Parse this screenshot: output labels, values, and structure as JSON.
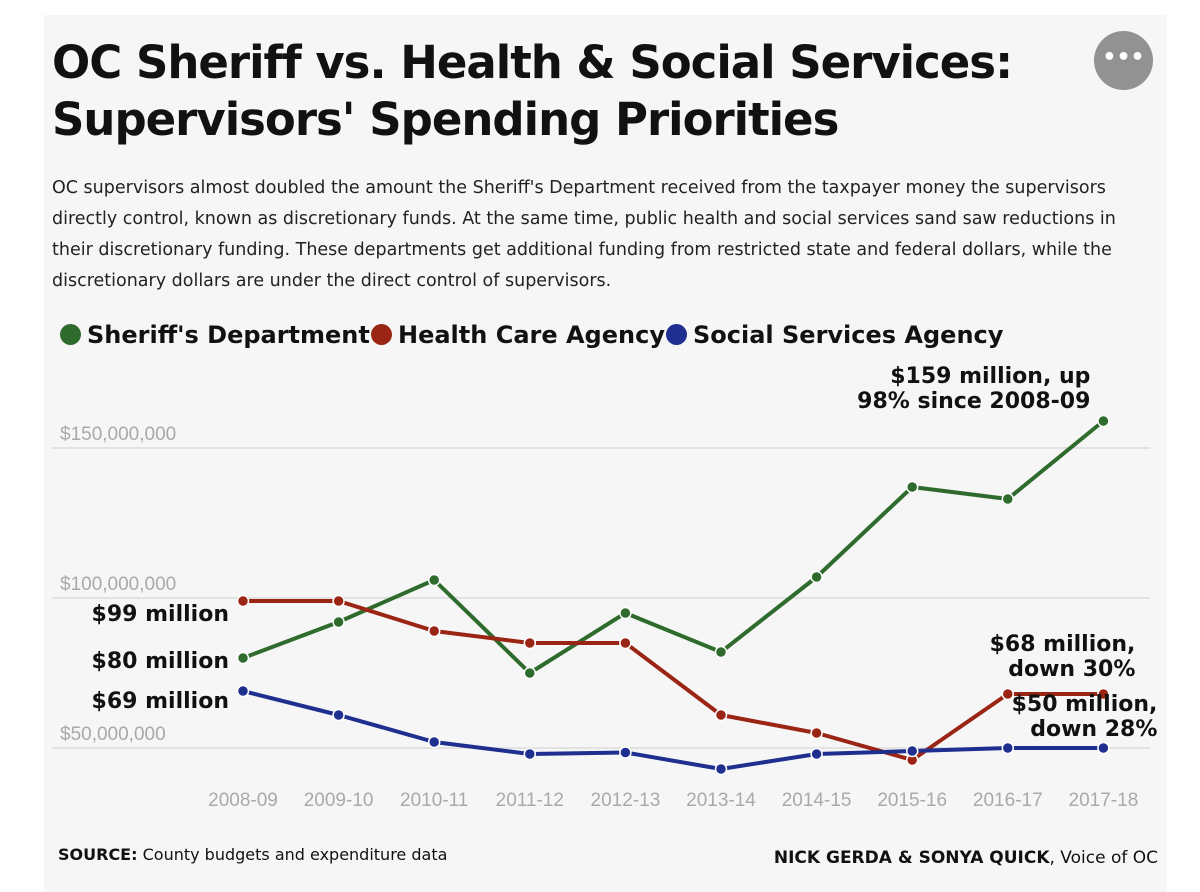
{
  "title": "OC Sheriff vs. Health & Social Services: Supervisors' Spending Priorities",
  "subtitle": "OC supervisors almost doubled the amount the Sheriff's Department received from the taxpayer money the supervisors directly control, known as discretionary funds. At the same time, public health and social services sand saw reductions in their discretionary funding. These departments get additional funding from restricted state and federal dollars, while the discretionary dollars are under the direct control of supervisors.",
  "more_button_label": "•••",
  "legend": [
    {
      "name": "Sheriff's Department",
      "color": "#2e6b2d"
    },
    {
      "name": "Health Care Agency",
      "color": "#9b2514"
    },
    {
      "name": "Social Services Agency",
      "color": "#1e2f8f"
    }
  ],
  "chart_data": {
    "type": "line",
    "title": "OC Sheriff vs. Health & Social Services: Supervisors' Spending Priorities",
    "xlabel": "",
    "ylabel": "",
    "categories": [
      "2008-09",
      "2009-10",
      "2010-11",
      "2011-12",
      "2012-13",
      "2013-14",
      "2014-15",
      "2015-16",
      "2016-17",
      "2017-18"
    ],
    "ylim": [
      30000000,
      190000000
    ],
    "yticks": [
      50000000,
      100000000,
      150000000
    ],
    "ytick_labels": [
      "$50,000,000",
      "$100,000,000",
      "$150,000,000"
    ],
    "grid": true,
    "series": [
      {
        "name": "Sheriff's Department",
        "color": "#2e6b2d",
        "values": [
          80000000,
          92000000,
          106000000,
          75000000,
          95000000,
          82000000,
          107000000,
          137000000,
          133000000,
          159000000
        ]
      },
      {
        "name": "Health Care Agency",
        "color": "#9b2514",
        "values": [
          99000000,
          99000000,
          89000000,
          85000000,
          85000000,
          61000000,
          55000000,
          46000000,
          68000000,
          68000000
        ]
      },
      {
        "name": "Social Services Agency",
        "color": "#1e2f8f",
        "values": [
          69000000,
          61000000,
          52000000,
          48000000,
          48500000,
          43000000,
          48000000,
          49000000,
          50000000,
          50000000
        ]
      }
    ],
    "annotations": [
      {
        "series": 0,
        "index": 9,
        "lines": [
          "$159 million, up",
          "98% since 2008-09"
        ]
      },
      {
        "series": 1,
        "index": 0,
        "lines": [
          "$99 million"
        ]
      },
      {
        "series": 0,
        "index": 0,
        "lines": [
          "$80 million"
        ]
      },
      {
        "series": 2,
        "index": 0,
        "lines": [
          "$69 million"
        ]
      },
      {
        "series": 1,
        "index": 9,
        "lines": [
          "$68 million,",
          "down 30%"
        ]
      },
      {
        "series": 2,
        "index": 9,
        "lines": [
          "$50 million,",
          "down 28%"
        ]
      }
    ]
  },
  "footer": {
    "source_label": "SOURCE:",
    "source_text": " County budgets and expenditure data",
    "credit_names": "NICK GERDA & SONYA QUICK",
    "credit_outlet": ", Voice of OC"
  }
}
